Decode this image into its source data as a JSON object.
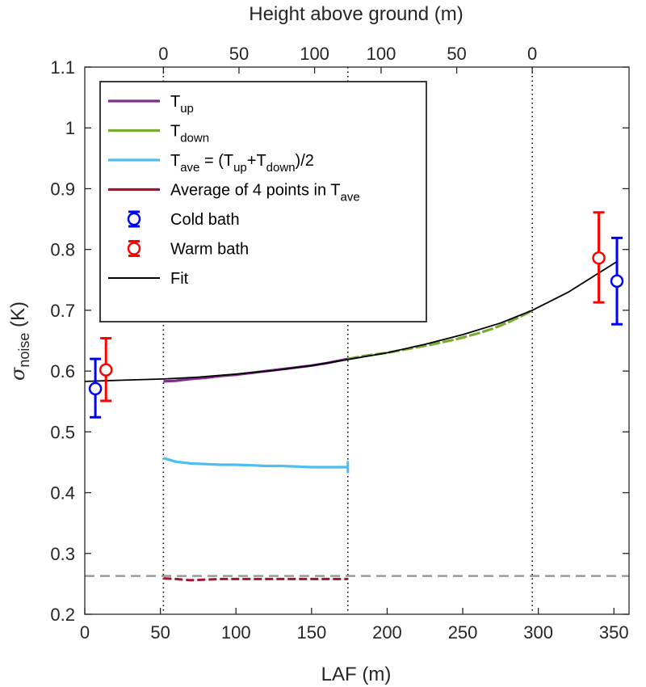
{
  "chart_data": {
    "type": "line",
    "xlabel": "LAF (m)",
    "top_xlabel": "Height above ground (m)",
    "ylabel_main": "σ",
    "ylabel_sub": "noise",
    "ylabel_unit": " (K)",
    "xlim": [
      0,
      360
    ],
    "ylim": [
      0.2,
      1.1
    ],
    "xticks": [
      0,
      50,
      100,
      150,
      200,
      250,
      300,
      350
    ],
    "xtick_labels": [
      "0",
      "50",
      "100",
      "150",
      "200",
      "250",
      "300",
      "350"
    ],
    "yticks": [
      0.2,
      0.3,
      0.4,
      0.5,
      0.6,
      0.7,
      0.8,
      0.9,
      1.0,
      1.1
    ],
    "ytick_labels": [
      "0.2",
      "0.3",
      "0.4",
      "0.5",
      "0.6",
      "0.7",
      "0.8",
      "0.9",
      "1",
      "1.1"
    ],
    "top_ticks": [
      {
        "x": 52,
        "label": "0"
      },
      {
        "x": 102,
        "label": "50"
      },
      {
        "x": 152,
        "label": "100"
      },
      {
        "x": 196,
        "label": "100"
      },
      {
        "x": 246,
        "label": "50"
      },
      {
        "x": 296,
        "label": "0"
      }
    ],
    "vlines": [
      52,
      174,
      296
    ],
    "hline": 0.263,
    "grid": false,
    "legend_position": "top-left",
    "colors": {
      "t_up": "#7e2f8e",
      "t_down": "#77ac30",
      "t_ave": "#4dbeee",
      "avg4": "#a2142f",
      "cold": "#0000ff",
      "warm": "#ff0000",
      "fit": "#000000",
      "dotted": "#000000",
      "dashed": "#999999"
    },
    "legend": [
      {
        "key": "t_up",
        "kind": "line",
        "parts": [
          {
            "t": "T"
          },
          {
            "t": "up",
            "sub": true
          }
        ]
      },
      {
        "key": "t_down",
        "kind": "line",
        "parts": [
          {
            "t": "T"
          },
          {
            "t": "down",
            "sub": true
          }
        ]
      },
      {
        "key": "t_ave",
        "kind": "line",
        "parts": [
          {
            "t": "T"
          },
          {
            "t": "ave",
            "sub": true
          },
          {
            "t": " = (T"
          },
          {
            "t": "up",
            "sub": true
          },
          {
            "t": "+T"
          },
          {
            "t": "down",
            "sub": true
          },
          {
            "t": ")/2"
          }
        ]
      },
      {
        "key": "avg4",
        "kind": "line",
        "parts": [
          {
            "t": "Average of 4 points in T"
          },
          {
            "t": "ave",
            "sub": true
          }
        ]
      },
      {
        "key": "cold",
        "kind": "errorbar",
        "parts": [
          {
            "t": "Cold bath"
          }
        ]
      },
      {
        "key": "warm",
        "kind": "errorbar",
        "parts": [
          {
            "t": "Warm bath"
          }
        ]
      },
      {
        "key": "fit",
        "kind": "line",
        "parts": [
          {
            "t": "Fit"
          }
        ]
      }
    ],
    "series": [
      {
        "key": "t_up",
        "x": [
          52,
          60,
          70,
          80,
          90,
          100,
          110,
          120,
          130,
          140,
          150,
          160,
          170,
          174
        ],
        "y": [
          0.583,
          0.584,
          0.587,
          0.589,
          0.592,
          0.594,
          0.597,
          0.6,
          0.603,
          0.606,
          0.609,
          0.613,
          0.618,
          0.62
        ]
      },
      {
        "key": "t_down",
        "x": [
          174,
          185,
          200,
          215,
          230,
          245,
          260,
          270,
          280,
          290,
          296
        ],
        "y": [
          0.62,
          0.625,
          0.63,
          0.637,
          0.644,
          0.652,
          0.662,
          0.67,
          0.68,
          0.692,
          0.7
        ]
      },
      {
        "key": "t_ave",
        "x": [
          52,
          60,
          70,
          80,
          90,
          100,
          110,
          120,
          130,
          140,
          150,
          160,
          170,
          174
        ],
        "y": [
          0.457,
          0.451,
          0.448,
          0.447,
          0.446,
          0.446,
          0.445,
          0.444,
          0.444,
          0.443,
          0.442,
          0.442,
          0.442,
          0.442
        ]
      },
      {
        "key": "avg4",
        "x": [
          52,
          60,
          70,
          80,
          90,
          100,
          110,
          120,
          130,
          140,
          150,
          160,
          170,
          174
        ],
        "y": [
          0.259,
          0.258,
          0.256,
          0.257,
          0.258,
          0.258,
          0.258,
          0.258,
          0.258,
          0.258,
          0.258,
          0.258,
          0.258,
          0.258
        ]
      },
      {
        "key": "fit",
        "x": [
          0,
          25,
          52,
          75,
          100,
          125,
          150,
          174,
          200,
          225,
          250,
          275,
          296,
          320,
          352
        ],
        "y": [
          0.583,
          0.585,
          0.587,
          0.59,
          0.595,
          0.601,
          0.609,
          0.619,
          0.63,
          0.644,
          0.66,
          0.679,
          0.7,
          0.73,
          0.78
        ]
      }
    ],
    "errorbars": [
      {
        "key": "cold",
        "x": 7,
        "y": 0.571,
        "lo": 0.524,
        "hi": 0.62
      },
      {
        "key": "warm",
        "x": 14,
        "y": 0.602,
        "lo": 0.551,
        "hi": 0.654
      },
      {
        "key": "warm",
        "x": 340,
        "y": 0.786,
        "lo": 0.713,
        "hi": 0.861
      },
      {
        "key": "cold",
        "x": 352,
        "y": 0.748,
        "lo": 0.677,
        "hi": 0.819
      }
    ]
  }
}
